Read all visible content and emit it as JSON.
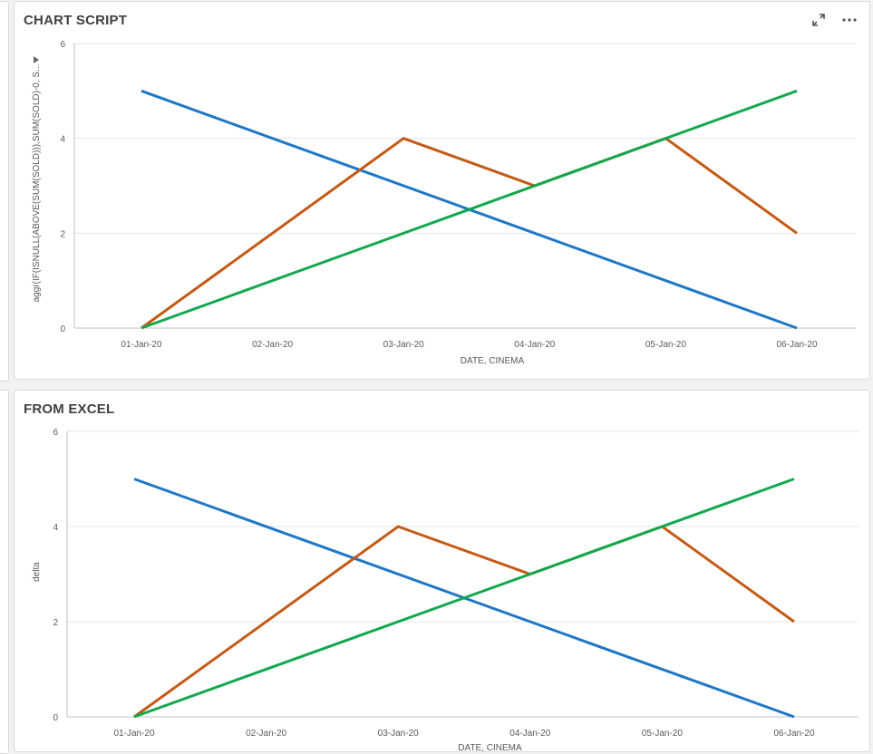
{
  "panels": [
    {
      "title": "CHART SCRIPT",
      "icons": [
        "expand-icon",
        "more-options-icon"
      ],
      "chart_data": {
        "type": "line",
        "categories": [
          "01-Jan-20",
          "02-Jan-20",
          "03-Jan-20",
          "04-Jan-20",
          "05-Jan-20",
          "06-Jan-20"
        ],
        "series": [
          {
            "color": "#1f77c7",
            "points": [
              [
                0,
                5
              ],
              [
                5,
                0
              ]
            ]
          },
          {
            "color": "#c45a16",
            "points": [
              [
                0,
                0
              ],
              [
                2,
                4
              ],
              [
                3,
                3
              ],
              [
                4,
                4
              ],
              [
                5,
                2
              ]
            ]
          },
          {
            "color": "#14a84e",
            "points": [
              [
                0,
                0
              ],
              [
                5,
                5
              ]
            ]
          }
        ],
        "xlabel": "DATE, CINEMA",
        "ylabel": "aggr(IF(ISNULL(ABOVE(SUM(SOLD))),SUM(SOLD)-0, S...",
        "yticks": [
          0,
          2,
          4,
          6
        ],
        "ylim": [
          0,
          6
        ],
        "grid": true
      }
    },
    {
      "title": "FROM EXCEL",
      "icons": [],
      "chart_data": {
        "type": "line",
        "categories": [
          "01-Jan-20",
          "02-Jan-20",
          "03-Jan-20",
          "04-Jan-20",
          "05-Jan-20",
          "06-Jan-20"
        ],
        "series": [
          {
            "color": "#1f77c7",
            "points": [
              [
                0,
                5
              ],
              [
                5,
                0
              ]
            ]
          },
          {
            "color": "#c45a16",
            "points": [
              [
                0,
                0
              ],
              [
                2,
                4
              ],
              [
                3,
                3
              ],
              [
                4,
                4
              ],
              [
                5,
                2
              ]
            ]
          },
          {
            "color": "#14a84e",
            "points": [
              [
                0,
                0
              ],
              [
                5,
                5
              ]
            ]
          }
        ],
        "xlabel": "DATE, CINEMA",
        "ylabel": "delta",
        "yticks": [
          0,
          2,
          4,
          6
        ],
        "ylim": [
          0,
          6
        ],
        "grid": true
      }
    }
  ]
}
